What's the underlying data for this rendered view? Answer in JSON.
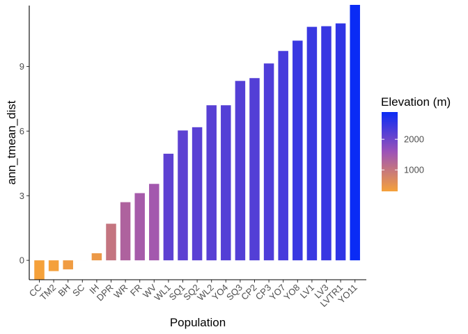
{
  "chart_data": {
    "type": "bar",
    "xlabel": "Population",
    "ylabel": "ann_tmean_dist",
    "categories": [
      "CC",
      "TM2",
      "BH",
      "SC",
      "IH",
      "DPR",
      "WR",
      "FR",
      "WV",
      "WL1",
      "SQ1",
      "SQ2",
      "WL2",
      "YO4",
      "SQ3",
      "CP2",
      "CP3",
      "YO7",
      "YO8",
      "LV1",
      "LV3",
      "LVTR1",
      "YO11"
    ],
    "values": [
      -0.9,
      -0.5,
      -0.42,
      0.0,
      0.33,
      1.7,
      2.7,
      3.12,
      3.55,
      4.95,
      6.03,
      6.18,
      7.2,
      7.2,
      8.33,
      8.46,
      9.14,
      9.72,
      10.2,
      10.84,
      10.87,
      11.0,
      11.86
    ],
    "elevation": [
      300,
      310,
      380,
      370,
      430,
      1020,
      1330,
      1450,
      1490,
      2150,
      2150,
      2190,
      2200,
      2240,
      2240,
      2240,
      2290,
      2350,
      2470,
      2470,
      2480,
      2560,
      2890
    ],
    "ylim": [
      -0.9,
      11.86
    ],
    "yticks": [
      0,
      3,
      6,
      9
    ],
    "grid": false,
    "legend": {
      "title": "Elevation (m)",
      "ticks": [
        1000,
        2000
      ],
      "range": [
        300,
        2890
      ],
      "color_low": "#f5a13a",
      "color_high": "#0a2bf5",
      "placement": "right"
    }
  }
}
